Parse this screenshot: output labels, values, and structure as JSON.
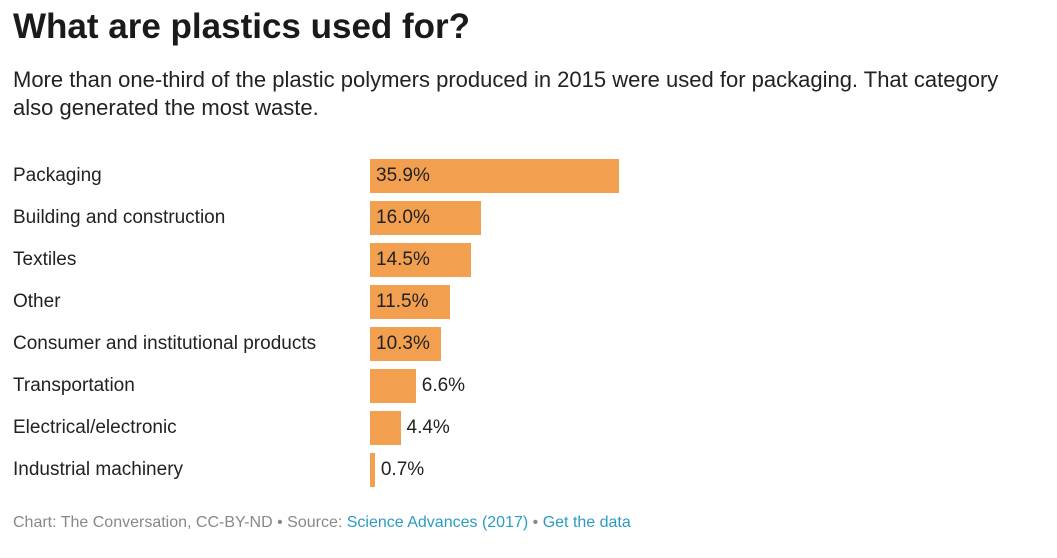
{
  "title": "What are plastics used for?",
  "subtitle": "More than one-third of the plastic polymers produced in 2015 were used for packaging. That category also generated the most waste.",
  "chart_data": {
    "type": "bar",
    "orientation": "horizontal",
    "categories": [
      "Packaging",
      "Building and construction",
      "Textiles",
      "Other",
      "Consumer and institutional products",
      "Transportation",
      "Electrical/electronic",
      "Industrial machinery"
    ],
    "values": [
      35.9,
      16.0,
      14.5,
      11.5,
      10.3,
      6.6,
      4.4,
      0.7
    ],
    "labels": [
      "35.9%",
      "16.0%",
      "14.5%",
      "11.5%",
      "10.3%",
      "6.6%",
      "4.4%",
      "0.7%"
    ],
    "unit": "%",
    "color": "#f2a050",
    "xlim": [
      0,
      35.9
    ]
  },
  "footer": {
    "credit": "Chart: The Conversation, CC-BY-ND",
    "sep": " • ",
    "source_prefix": "Source: ",
    "source_link": "Science Advances (2017)",
    "data_link": "Get the data"
  }
}
